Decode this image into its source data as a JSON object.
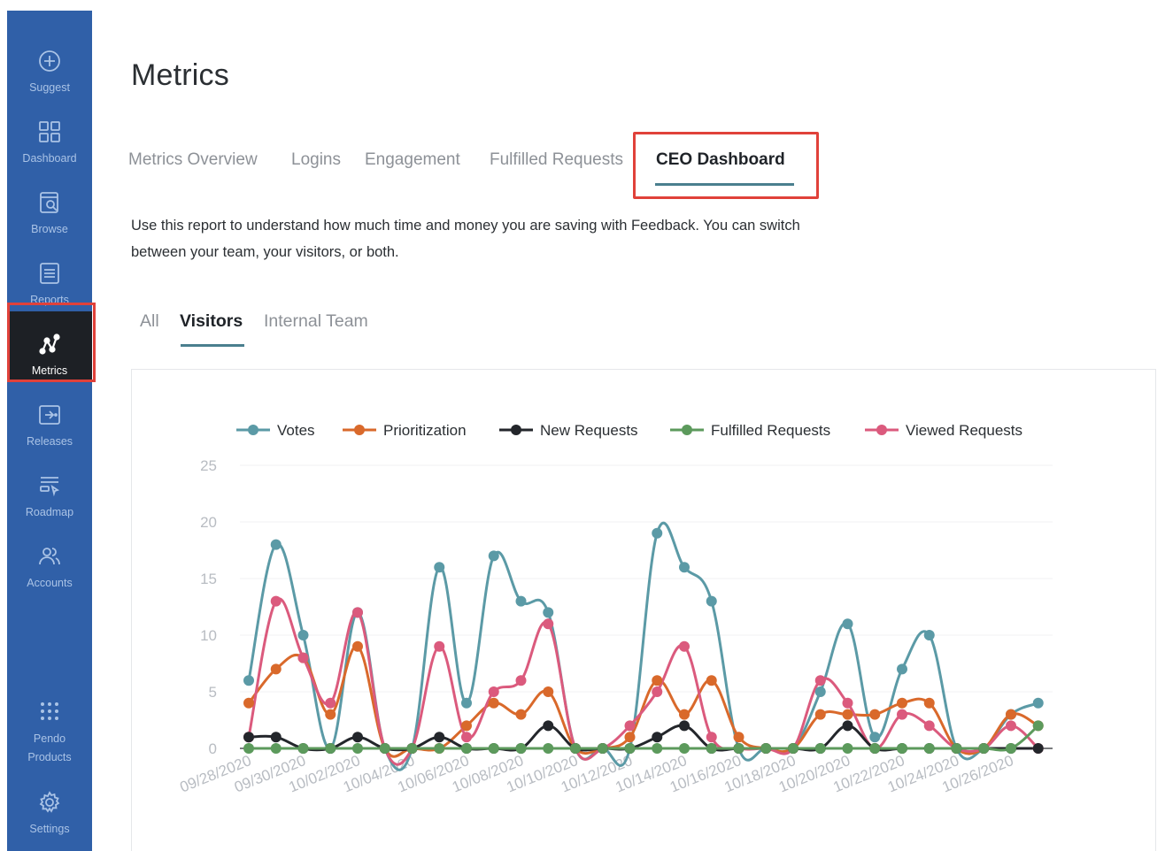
{
  "sidebar": {
    "items": [
      {
        "label": "Suggest",
        "icon": "plus-circle-icon",
        "name": "suggest"
      },
      {
        "label": "Dashboard",
        "icon": "grid-icon",
        "name": "dashboard"
      },
      {
        "label": "Browse",
        "icon": "browse-search-icon",
        "name": "browse"
      },
      {
        "label": "Reports",
        "icon": "reports-icon",
        "name": "reports"
      },
      {
        "label": "Metrics",
        "icon": "metrics-icon",
        "name": "metrics",
        "active": true
      },
      {
        "label": "Releases",
        "icon": "releases-icon",
        "name": "releases"
      },
      {
        "label": "Roadmap",
        "icon": "roadmap-icon",
        "name": "roadmap"
      },
      {
        "label": "Accounts",
        "icon": "accounts-icon",
        "name": "accounts"
      },
      {
        "label": "Pendo Products",
        "icon": "dots-grid-icon",
        "name": "pendo-products"
      },
      {
        "label": "Settings",
        "icon": "gear-icon",
        "name": "settings"
      }
    ]
  },
  "page": {
    "title": "Metrics",
    "tabs": [
      "Metrics Overview",
      "Logins",
      "Engagement",
      "Fulfilled Requests",
      "CEO Dashboard"
    ],
    "active_tab": "CEO Dashboard",
    "description_line1": "Use this report to understand how much time and money you are saving with Feedback. You can switch",
    "description_line2": "between your team, your visitors, or both.",
    "subtabs": [
      "All",
      "Visitors",
      "Internal Team"
    ],
    "active_subtab": "Visitors"
  },
  "colors": {
    "sidebar_bg": "#3060a8",
    "accent_underline": "#4a7f8e",
    "highlight_outline": "#e0413a"
  },
  "chart_data": {
    "type": "line",
    "x": [
      "09/28/2020",
      "09/29/2020",
      "09/30/2020",
      "10/01/2020",
      "10/02/2020",
      "10/03/2020",
      "10/04/2020",
      "10/05/2020",
      "10/06/2020",
      "10/07/2020",
      "10/08/2020",
      "10/09/2020",
      "10/10/2020",
      "10/11/2020",
      "10/12/2020",
      "10/13/2020",
      "10/14/2020",
      "10/15/2020",
      "10/16/2020",
      "10/17/2020",
      "10/18/2020",
      "10/19/2020",
      "10/20/2020",
      "10/21/2020",
      "10/22/2020",
      "10/23/2020",
      "10/24/2020",
      "10/25/2020",
      "10/26/2020",
      "10/27/2020"
    ],
    "tick_labels": [
      "09/28/2020",
      "09/30/2020",
      "10/02/2020",
      "10/04/2020",
      "10/06/2020",
      "10/08/2020",
      "10/10/2020",
      "10/12/2020",
      "10/14/2020",
      "10/16/2020",
      "10/18/2020",
      "10/20/2020",
      "10/22/2020",
      "10/24/2020",
      "10/26/2020"
    ],
    "y_ticks": [
      0,
      5,
      10,
      15,
      20,
      25
    ],
    "ylim": [
      0,
      25
    ],
    "legend_position": "top",
    "series": [
      {
        "name": "Votes",
        "color": "#5b9aa6",
        "values": [
          6,
          18,
          10,
          0,
          12,
          0,
          0,
          16,
          4,
          17,
          13,
          12,
          0,
          0,
          0,
          19,
          16,
          13,
          0,
          0,
          0,
          5,
          11,
          1,
          7,
          10,
          0,
          0,
          3,
          4
        ]
      },
      {
        "name": "Prioritization",
        "color": "#d9692b",
        "values": [
          4,
          7,
          8,
          3,
          9,
          0,
          0,
          0,
          2,
          4,
          3,
          5,
          0,
          0,
          1,
          6,
          3,
          6,
          1,
          0,
          0,
          3,
          3,
          3,
          4,
          4,
          0,
          0,
          3,
          2
        ]
      },
      {
        "name": "New Requests",
        "color": "#23262b",
        "values": [
          1,
          1,
          0,
          0,
          1,
          0,
          0,
          1,
          0,
          0,
          0,
          2,
          0,
          0,
          0,
          1,
          2,
          0,
          0,
          0,
          0,
          0,
          2,
          0,
          0,
          0,
          0,
          0,
          0,
          0
        ]
      },
      {
        "name": "Fulfilled Requests",
        "color": "#5c9a5c",
        "values": [
          0,
          0,
          0,
          0,
          0,
          0,
          0,
          0,
          0,
          0,
          0,
          0,
          0,
          0,
          0,
          0,
          0,
          0,
          0,
          0,
          0,
          0,
          0,
          0,
          0,
          0,
          0,
          0,
          0,
          2
        ]
      },
      {
        "name": "Viewed Requests",
        "color": "#db5a7d",
        "values": [
          1,
          13,
          8,
          4,
          12,
          0,
          0,
          9,
          1,
          5,
          6,
          11,
          0,
          0,
          2,
          5,
          9,
          1,
          0,
          0,
          0,
          6,
          4,
          0,
          3,
          2,
          0,
          0,
          2,
          0
        ]
      }
    ]
  }
}
